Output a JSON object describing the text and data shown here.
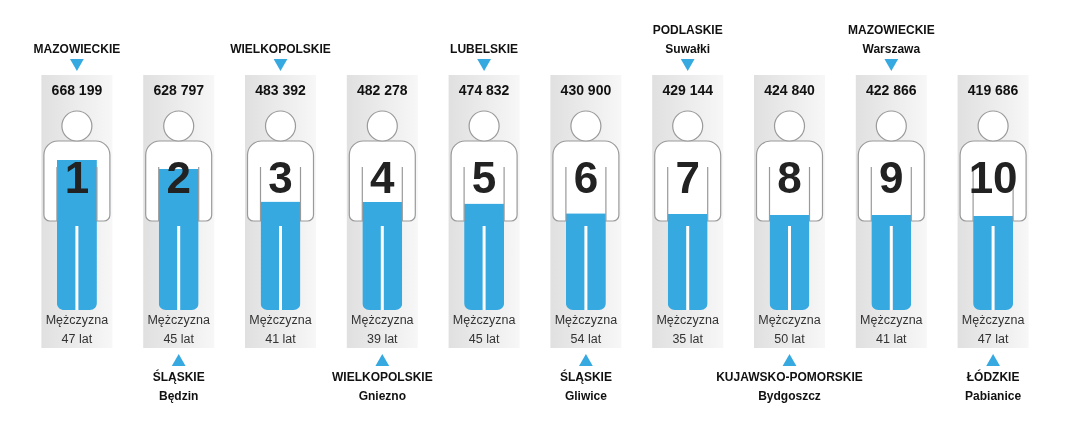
{
  "chart_data": {
    "type": "bar",
    "categories": [
      "1",
      "2",
      "3",
      "4",
      "5",
      "6",
      "7",
      "8",
      "9",
      "10"
    ],
    "values": [
      668199,
      628797,
      483392,
      482278,
      474832,
      430900,
      429144,
      424840,
      422866,
      419686
    ],
    "color": "#36a9e1",
    "data_labels": true,
    "tick_labels": "x",
    "annotations": [
      "Mężczyzna\n47 lat",
      "Mężczyzna\n45 lat",
      "Mężczyzna\n41 lat",
      "Mężczyzna\n39 lat",
      "Mężczyzna\n45 lat",
      "Mężczyzna\n54 lat",
      "Mężczyzna\n35 lat",
      "Mężczyzna\n50 lat",
      "Mężczyzna\n41 lat",
      "Mężczyzna\n47 lat",
      "MAZOWIECKIE",
      "ŚLĄSKIE\nBędzin",
      "WIELKOPOLSKIE",
      "WIELKOPOLSKIE\nGniezno",
      "LUBELSKIE",
      "ŚLĄSKIE\nGliwice",
      "PODLASKIE\nSuwałki",
      "KUJAWSKO-POMORSKIE\nBydgoszcz",
      "MAZOWIECKIE\nWarszawa",
      "ŁÓDZKIE\nPabianice"
    ]
  }
}
